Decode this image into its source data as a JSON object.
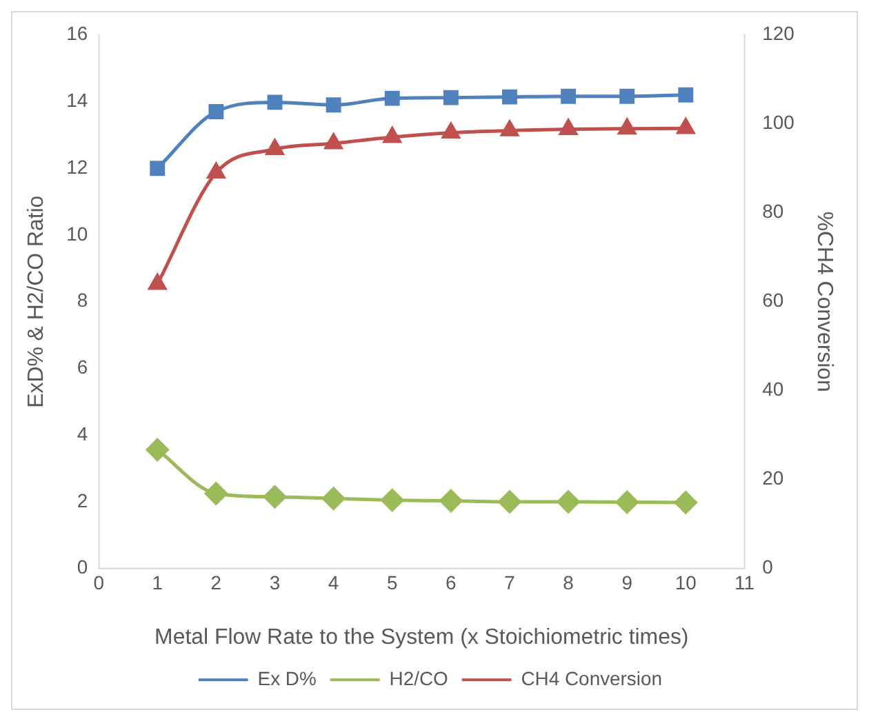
{
  "chart_data": {
    "type": "line",
    "xlabel": "Metal Flow Rate to the System (x Stoichiometric times)",
    "ylabel": "ExD% & H2/CO Ratio",
    "y2label": "%CH4 Conversion",
    "x": [
      1,
      2,
      3,
      4,
      5,
      6,
      7,
      8,
      9,
      10
    ],
    "xlim": [
      0,
      11
    ],
    "xticks": [
      0,
      1,
      2,
      3,
      4,
      5,
      6,
      7,
      8,
      9,
      10,
      11
    ],
    "ylim": [
      0,
      16
    ],
    "yticks": [
      0,
      2,
      4,
      6,
      8,
      10,
      12,
      14,
      16
    ],
    "y2lim": [
      0,
      120
    ],
    "y2ticks": [
      0,
      20,
      40,
      60,
      80,
      100,
      120
    ],
    "grid": false,
    "legend": "bottom",
    "series": [
      {
        "name": "Ex D%",
        "color": "#4f81bd",
        "marker": "square",
        "values": [
          12.0,
          13.7,
          13.98,
          13.9,
          14.1,
          14.12,
          14.14,
          14.16,
          14.16,
          14.2
        ]
      },
      {
        "name": "H2/CO",
        "color": "#9bbb59",
        "marker": "diamond",
        "values": [
          3.56,
          2.25,
          2.15,
          2.1,
          2.05,
          2.03,
          2.0,
          2.0,
          1.99,
          1.98
        ]
      },
      {
        "name": "CH4 Conversion",
        "color": "#c0504d",
        "marker": "triangle",
        "axis": "y2",
        "values": [
          64,
          89,
          94.3,
          95.6,
          97,
          98,
          98.5,
          98.8,
          98.9,
          99
        ]
      }
    ]
  }
}
